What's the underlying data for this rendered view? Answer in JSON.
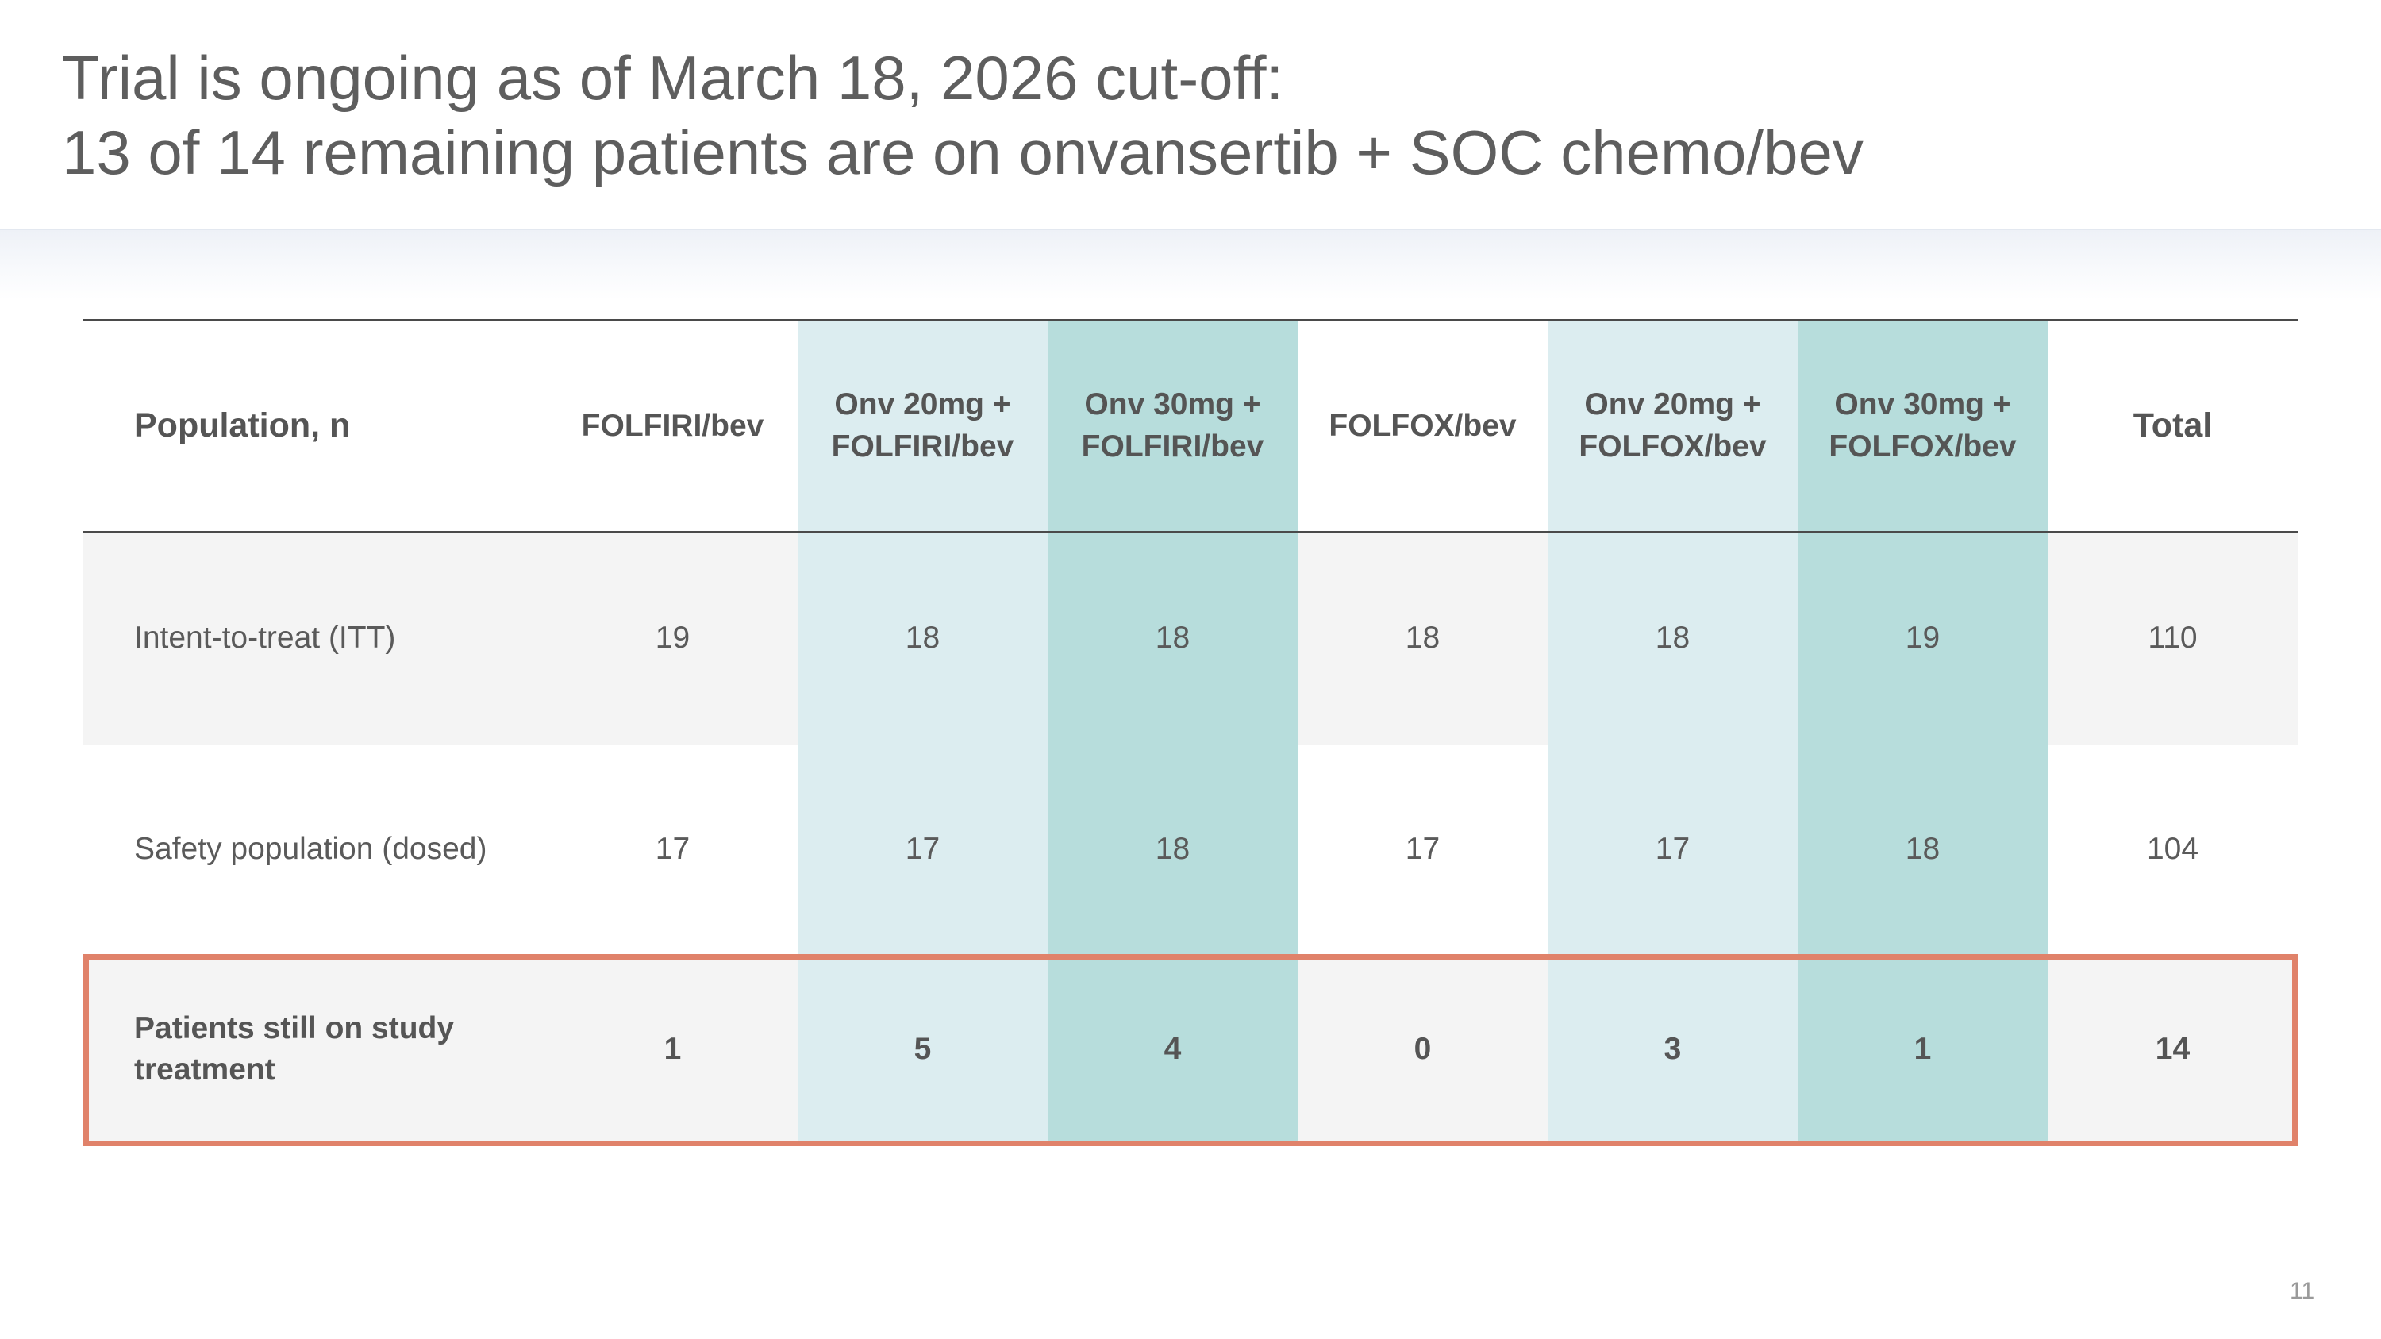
{
  "title": {
    "line1": "Trial is ongoing as of March 18, 2026 cut-off:",
    "line2": "13 of 14 remaining patients are on onvansertib + SOC chemo/bev"
  },
  "colors": {
    "light_teal": "#dcedf0",
    "dark_teal": "#b7dddc",
    "highlight_border": "#e0826a",
    "row_grey": "#f4f4f4"
  },
  "table": {
    "headers": {
      "population": "Population, n",
      "c1": "FOLFIRI/bev",
      "c2": [
        "Onv 20mg +",
        "FOLFIRI/bev"
      ],
      "c3": [
        "Onv 30mg +",
        "FOLFIRI/bev"
      ],
      "c4": "FOLFOX/bev",
      "c5": [
        "Onv 20mg +",
        "FOLFOX/bev"
      ],
      "c6": [
        "Onv 30mg +",
        "FOLFOX/bev"
      ],
      "total": "Total"
    },
    "rows": [
      {
        "label": "Intent-to-treat (ITT)",
        "values": [
          "19",
          "18",
          "18",
          "18",
          "18",
          "19",
          "110"
        ]
      },
      {
        "label": "Safety population (dosed)",
        "values": [
          "17",
          "17",
          "18",
          "17",
          "17",
          "18",
          "104"
        ]
      },
      {
        "label": [
          "Patients still on study",
          "treatment"
        ],
        "values": [
          "1",
          "5",
          "4",
          "0",
          "3",
          "1",
          "14"
        ]
      }
    ]
  },
  "page_number": "11"
}
